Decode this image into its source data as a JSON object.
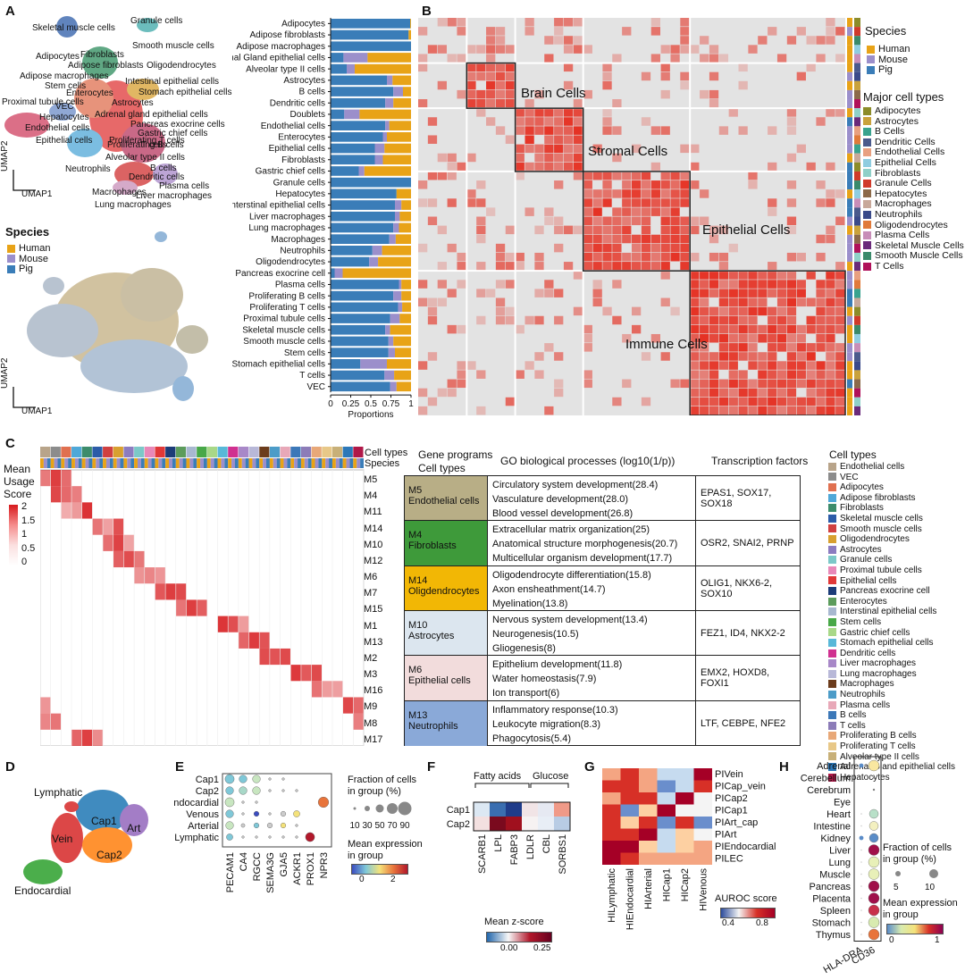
{
  "panels": {
    "A": "A",
    "B": "B",
    "C": "C",
    "D": "D",
    "E": "E",
    "F": "F",
    "G": "G",
    "H": "H"
  },
  "panelA": {
    "umap_labels": [
      "Skeletal muscle cells",
      "Granule cells",
      "Smooth muscle cells",
      "Adipocytes",
      "Fibroblasts",
      "Adipose macrophages",
      "Adipose fibroblasts",
      "Oligodendrocytes",
      "Stem cells",
      "Enterocytes",
      "Intestinal epithelial cells",
      "Stomach epithelial cells",
      "Proximal tubule cells",
      "VEC",
      "Hepatocytes",
      "Endothelial cells",
      "Epithelial cells",
      "Adrenal gland epithelial cells",
      "Pancreas exocrine cells",
      "Gastric chief cells",
      "Astrocytes",
      "Proliferating T cells",
      "Proliferating B cells",
      "T cells",
      "Alveolar type II cells",
      "B cells",
      "Neutrophils",
      "Dendritic cells",
      "Plasma cells",
      "Macrophages",
      "Liver macrophages",
      "Lung macrophages"
    ],
    "axis_x": "UMAP1",
    "axis_y": "UMAP2",
    "species_title": "Species",
    "species": [
      {
        "name": "Human",
        "color": "#E8A317"
      },
      {
        "name": "Mouse",
        "color": "#9B8FCB"
      },
      {
        "name": "Pig",
        "color": "#3A7DB8"
      }
    ],
    "bar_xlabel": "Proportions",
    "bar_ticks": [
      "0",
      "0.25",
      "0.5",
      "0.75",
      "1"
    ]
  },
  "chart_data": {
    "type": "bar",
    "title": "",
    "xlabel": "Proportions",
    "ylabel": "",
    "xlim": [
      0,
      1
    ],
    "categories": [
      "Adipocytes",
      "Adipose fibroblasts",
      "Adipose macrophages",
      "Adrenal Gland epithelial cells",
      "Alveolar type II cells",
      "Astrocytes",
      "B cells",
      "Dendritic cells",
      "Doublets",
      "Endothelial cells",
      "Enterocytes",
      "Epithelial cells",
      "Fibroblasts",
      "Gastric chief cells",
      "Granule cells",
      "Hepatocytes",
      "Interstinal epithelial cells",
      "Liver macrophages",
      "Lung macrophages",
      "Macrophages",
      "Neutrophils",
      "Oligodendrocytes",
      "Pancreas exocrine cell",
      "Plasma cells",
      "Proliferating B cells",
      "Proliferating T cells",
      "Proximal tubule cells",
      "Skeletal muscle cells",
      "Smooth muscle cells",
      "Stem cells",
      "Stomach epithelial cells",
      "T cells",
      "VEC"
    ],
    "series": [
      {
        "name": "Pig",
        "color": "#3A7DB8",
        "values": [
          0.99,
          0.97,
          1.0,
          0.16,
          0.2,
          0.7,
          0.78,
          0.68,
          0.17,
          0.68,
          0.65,
          0.55,
          0.55,
          0.35,
          1.0,
          0.82,
          0.8,
          0.8,
          0.78,
          0.73,
          0.52,
          0.48,
          0.05,
          0.85,
          0.78,
          0.84,
          0.74,
          0.68,
          0.72,
          0.72,
          0.37,
          0.67,
          0.74
        ]
      },
      {
        "name": "Mouse",
        "color": "#9B8FCB",
        "values": [
          0.0,
          0.0,
          0.0,
          0.3,
          0.1,
          0.07,
          0.12,
          0.1,
          0.19,
          0.05,
          0.05,
          0.12,
          0.1,
          0.07,
          0.0,
          0.0,
          0.08,
          0.06,
          0.07,
          0.08,
          0.12,
          0.11,
          0.1,
          0.03,
          0.1,
          0.05,
          0.12,
          0.06,
          0.06,
          0.08,
          0.33,
          0.12,
          0.08
        ]
      },
      {
        "name": "Human",
        "color": "#E8A317",
        "values": [
          0.01,
          0.03,
          0.0,
          0.54,
          0.7,
          0.23,
          0.1,
          0.22,
          0.64,
          0.27,
          0.3,
          0.33,
          0.35,
          0.58,
          0.0,
          0.18,
          0.12,
          0.14,
          0.15,
          0.19,
          0.36,
          0.41,
          0.85,
          0.12,
          0.12,
          0.11,
          0.14,
          0.26,
          0.22,
          0.2,
          0.3,
          0.21,
          0.18
        ]
      }
    ]
  },
  "panelB": {
    "blocks": [
      "Brain Cells",
      "Stromal Cells",
      "Epithelial Cells",
      "Immune Cells"
    ],
    "species_title": "Species",
    "species": [
      {
        "name": "Human",
        "color": "#E8A317"
      },
      {
        "name": "Mouse",
        "color": "#9B8FCB"
      },
      {
        "name": "Pig",
        "color": "#3A7DB8"
      }
    ],
    "major_title": "Major cell types",
    "major_types": [
      {
        "name": "Adipocytes",
        "color": "#8C8C2A"
      },
      {
        "name": "Astrocytes",
        "color": "#C9A23C"
      },
      {
        "name": "B Cells",
        "color": "#39A38E"
      },
      {
        "name": "Dendritic Cells",
        "color": "#4A5A8C"
      },
      {
        "name": "Endothelial Cells",
        "color": "#E8A080"
      },
      {
        "name": "Epithelial Cells",
        "color": "#8FCDE0"
      },
      {
        "name": "Fibroblasts",
        "color": "#8FD0C8"
      },
      {
        "name": "Granule Cells",
        "color": "#D03A2A"
      },
      {
        "name": "Hepatocytes",
        "color": "#8C6A4A"
      },
      {
        "name": "Macrophages",
        "color": "#C8A89A"
      },
      {
        "name": "Neutrophils",
        "color": "#3A4A8A"
      },
      {
        "name": "Oligodendrocytes",
        "color": "#E07A3A"
      },
      {
        "name": "Plasma Cells",
        "color": "#C88EB8"
      },
      {
        "name": "Skeletal Muscle Cells",
        "color": "#6A2A7A"
      },
      {
        "name": "Smooth Muscle Cells",
        "color": "#3A8A6A"
      },
      {
        "name": "T Cells",
        "color": "#B0105A"
      }
    ]
  },
  "panelC": {
    "top_labels": [
      "Cell types",
      "Species"
    ],
    "legend_title_1": "Mean",
    "legend_title_2": "Usage",
    "legend_title_3": "Score",
    "legend_ticks": [
      "2",
      "1.5",
      "1",
      "0.5",
      "0"
    ],
    "modules": [
      "M5",
      "M4",
      "M11",
      "M14",
      "M10",
      "M12",
      "M6",
      "M7",
      "M15",
      "M1",
      "M13",
      "M2",
      "M3",
      "M16",
      "M9",
      "M8",
      "M17"
    ],
    "header_gp": "Gene programs",
    "header_ct": "Cell types",
    "header_go": "GO biological processes (log10(1/p))",
    "header_tf": "Transcription factors",
    "programs": [
      {
        "module": "M5",
        "cell": "Endothelial cells",
        "color": "#B8AE86",
        "go": [
          "Circulatory system development(28.4)",
          "Vasculature development(28.0)",
          "Blood vessel development(26.8)"
        ],
        "tf": "EPAS1, SOX17, SOX18"
      },
      {
        "module": "M4",
        "cell": "Fibroblasts",
        "color": "#3E9A3A",
        "go": [
          "Extracellular matrix organization(25)",
          "Anatomical structure morphogenesis(20.7)",
          "Multicellular organism development(17.7)"
        ],
        "tf": "OSR2, SNAI2, PRNP"
      },
      {
        "module": "M14",
        "cell": "Oligdendrocytes",
        "color": "#F2B705",
        "go": [
          "Oligodendrocyte differentiation(15.8)",
          "Axon ensheathment(14.7)",
          "Myelination(13.8)"
        ],
        "tf": "OLIG1, NKX6-2, SOX10"
      },
      {
        "module": "M10",
        "cell": "Astrocytes",
        "color": "#DCE6EF",
        "go": [
          "Nervous system development(13.4)",
          "Neurogenesis(10.5)",
          "Gliogenesis(8)"
        ],
        "tf": "FEZ1, ID4, NKX2-2"
      },
      {
        "module": "M6",
        "cell": "Epithelial cells",
        "color": "#F2DCDC",
        "go": [
          "Epithelium development(11.8)",
          "Water homeostasis(7.9)",
          "Ion transport(6)"
        ],
        "tf": "EMX2, HOXD8, FOXI1"
      },
      {
        "module": "M13",
        "cell": "Neutrophils",
        "color": "#8AA9D8",
        "go": [
          "Inflammatory response(10.3)",
          "Leukocyte migration(8.3)",
          "Phagocytosis(5.4)"
        ],
        "tf": "LTF, CEBPE, NFE2"
      }
    ],
    "celltypes_title": "Cell types",
    "celltypes": [
      {
        "name": "Endothelial cells",
        "color": "#B8A48A"
      },
      {
        "name": "VEC",
        "color": "#8C8C8C"
      },
      {
        "name": "Adipocytes",
        "color": "#E07050"
      },
      {
        "name": "Adipose fibroblasts",
        "color": "#4FA8D8"
      },
      {
        "name": "Fibroblasts",
        "color": "#3C8C6C"
      },
      {
        "name": "Skeletal muscle cells",
        "color": "#2C5CA8"
      },
      {
        "name": "Smooth muscle cells",
        "color": "#D04040"
      },
      {
        "name": "Oligodendrocytes",
        "color": "#D8A030"
      },
      {
        "name": "Astrocytes",
        "color": "#8C7CC0"
      },
      {
        "name": "Granule cells",
        "color": "#7CC8C8"
      },
      {
        "name": "Proximal tubule cells",
        "color": "#E888B8"
      },
      {
        "name": "Epithelial cells",
        "color": "#E03838"
      },
      {
        "name": "Pancreas exocrine cell",
        "color": "#1C3C78"
      },
      {
        "name": "Enterocytes",
        "color": "#5C9C5C"
      },
      {
        "name": "Interstinal epithelial cells",
        "color": "#A8B8D0"
      },
      {
        "name": "Stem cells",
        "color": "#48A848"
      },
      {
        "name": "Gastric chief cells",
        "color": "#A8D888"
      },
      {
        "name": "Stomach epithelial cells",
        "color": "#58B8D8"
      },
      {
        "name": "Dendritic cells",
        "color": "#D03090"
      },
      {
        "name": "Liver macrophages",
        "color": "#A888C8"
      },
      {
        "name": "Lung macrophages",
        "color": "#B8B8D8"
      },
      {
        "name": "Macrophages",
        "color": "#6C3C1C"
      },
      {
        "name": "Neutrophils",
        "color": "#4C9CC8"
      },
      {
        "name": "Plasma cells",
        "color": "#E8A8B8"
      },
      {
        "name": "B cells",
        "color": "#3C78B8"
      },
      {
        "name": "T cells",
        "color": "#8C7CB8"
      },
      {
        "name": "Proliferating B cells",
        "color": "#E8A878"
      },
      {
        "name": "Proliferating T cells",
        "color": "#E8C888"
      },
      {
        "name": "Alveolar type II cells",
        "color": "#C8B078"
      },
      {
        "name": "Adrenal Gland epithelial cells",
        "color": "#2C78B8"
      },
      {
        "name": "Hepatocytes",
        "color": "#B01848"
      }
    ]
  },
  "panelD": {
    "labels": [
      "Lymphatic",
      "Vein",
      "Cap1",
      "Art",
      "Cap2",
      "Endocardial"
    ]
  },
  "panelE": {
    "rows": [
      "Cap1",
      "Cap2",
      "Endocardial",
      "Venous",
      "Arterial",
      "Lymphatic"
    ],
    "genes": [
      "PECAM1",
      "CA4",
      "RGCC",
      "SEMA3G",
      "GJA5",
      "ACKR1",
      "PROX1",
      "NPR3"
    ],
    "size_title_1": "Fraction of cells",
    "size_title_2": "in group (%)",
    "size_ticks": [
      "10",
      "30",
      "50",
      "70",
      "90"
    ],
    "color_title_1": "Mean expression",
    "color_title_2": "in group",
    "color_ticks": [
      "0",
      "2"
    ]
  },
  "panelF": {
    "groups": [
      "Fatty acids",
      "Glucose"
    ],
    "rows": [
      "Cap1",
      "Cap2"
    ],
    "genes": [
      "SCARB1",
      "LPL",
      "FABP3",
      "LDLR",
      "CBL",
      "SORBS1"
    ],
    "cbar_title": "Mean z-score",
    "cbar_ticks": [
      "0.00",
      "0.25"
    ]
  },
  "panelG": {
    "rows": [
      "PIVein",
      "PICap_vein",
      "PICap2",
      "PICap1",
      "PIArt_cap",
      "PIArt",
      "PIEndocardial",
      "PILEC"
    ],
    "cols": [
      "HILymphatic",
      "HIEndocardial",
      "HIArterial",
      "HICap1",
      "HICap2",
      "HIVenous"
    ],
    "cbar_title": "AUROC score",
    "cbar_ticks": [
      "0.4",
      "0.8"
    ]
  },
  "panelH": {
    "rows": [
      "Adrenal",
      "Cerebellum",
      "Cerebrum",
      "Eye",
      "Heart",
      "Intestine",
      "Kidney",
      "Liver",
      "Lung",
      "Muscle",
      "Pancreas",
      "Placenta",
      "Spleen",
      "Stomach",
      "Thymus"
    ],
    "genes": [
      "HLA-DRA",
      "CD36"
    ],
    "size_title_1": "Fraction of cells",
    "size_title_2": "in group (%)",
    "size_ticks": [
      "5",
      "10"
    ],
    "color_title_1": "Mean expression",
    "color_title_2": "in group",
    "color_ticks": [
      "0",
      "1"
    ]
  }
}
